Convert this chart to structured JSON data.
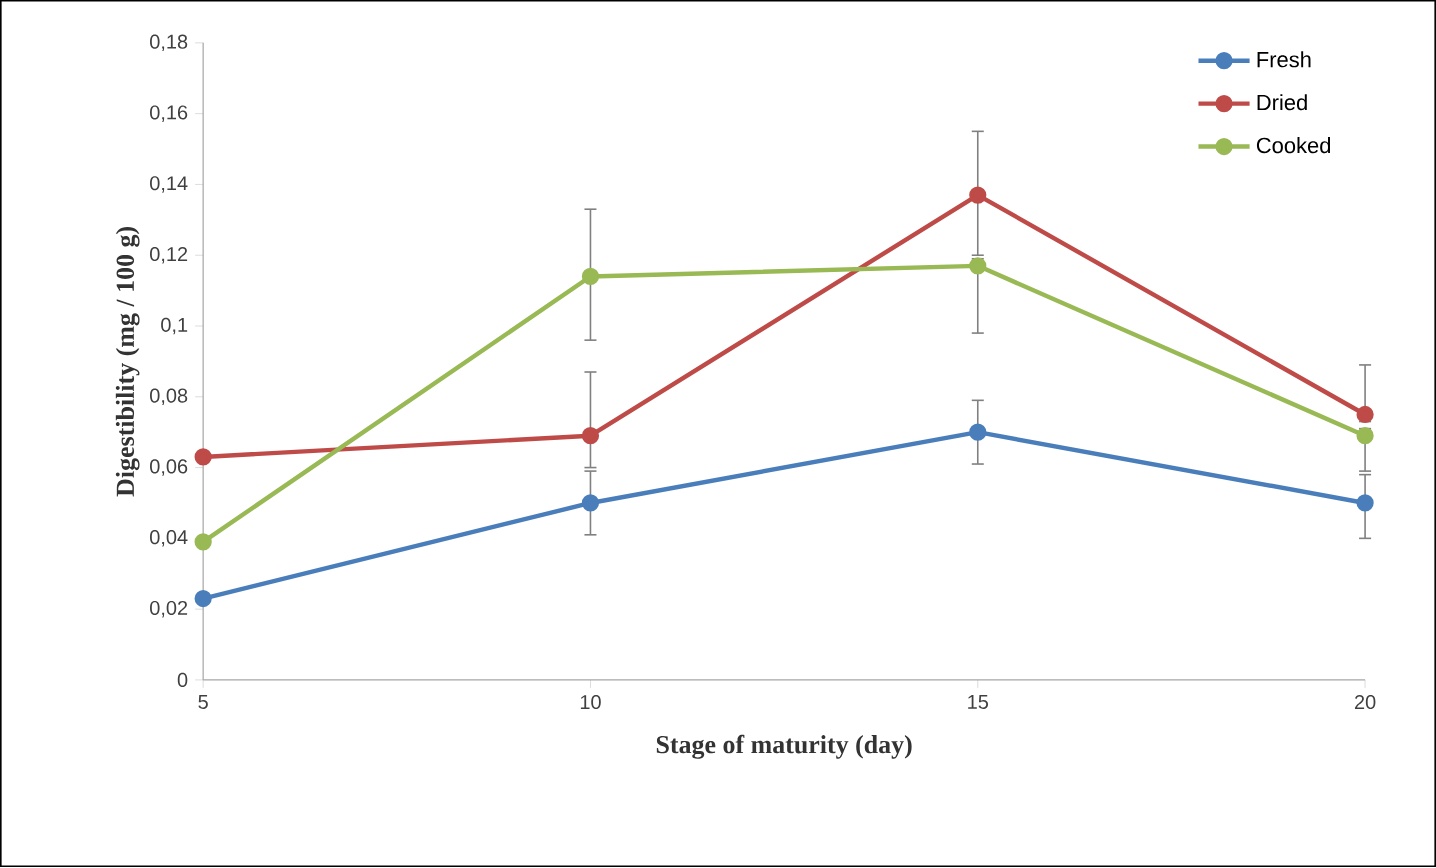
{
  "chart_data": {
    "type": "line",
    "xlabel": "Stage of maturity (day)",
    "ylabel": "Digestibility (mg / 100 g)",
    "x": [
      5,
      10,
      15,
      20
    ],
    "xlim": [
      5,
      20
    ],
    "xticks": [
      5,
      10,
      15,
      20
    ],
    "ylim": [
      0,
      0.18
    ],
    "yticks": [
      0,
      {
        "value": 0.02,
        "label": "0,02"
      },
      {
        "value": 0.04,
        "label": "0,04"
      },
      {
        "value": 0.06,
        "label": "0,06"
      },
      {
        "value": 0.08,
        "label": "0,08"
      },
      {
        "value": 0.1,
        "label": "0,1"
      },
      {
        "value": 0.12,
        "label": "0,12"
      },
      {
        "value": 0.14,
        "label": "0,14"
      },
      {
        "value": 0.16,
        "label": "0,16"
      },
      {
        "value": 0.18,
        "label": "0,18"
      }
    ],
    "legend": "top right",
    "marker": "circle",
    "line_style": "solid",
    "grid": false,
    "series": [
      {
        "name": "Fresh",
        "color": "#4a7ebb",
        "values": [
          0.023,
          0.05,
          0.07,
          0.05
        ],
        "errors": [
          null,
          [
            0.041,
            0.059
          ],
          [
            0.061,
            0.079
          ],
          [
            0.04,
            0.058
          ]
        ]
      },
      {
        "name": "Dried",
        "color": "#be4b48",
        "values": [
          0.063,
          0.069,
          0.137,
          0.075
        ],
        "errors": [
          null,
          [
            0.06,
            0.087
          ],
          [
            0.12,
            0.155
          ],
          [
            0.073,
            0.089
          ]
        ]
      },
      {
        "name": "Cooked",
        "color": "#98b954",
        "values": [
          0.039,
          0.114,
          0.117,
          0.069
        ],
        "errors": [
          null,
          [
            0.096,
            0.133
          ],
          [
            0.098,
            0.119
          ],
          [
            0.059,
            0.071
          ]
        ]
      }
    ]
  }
}
